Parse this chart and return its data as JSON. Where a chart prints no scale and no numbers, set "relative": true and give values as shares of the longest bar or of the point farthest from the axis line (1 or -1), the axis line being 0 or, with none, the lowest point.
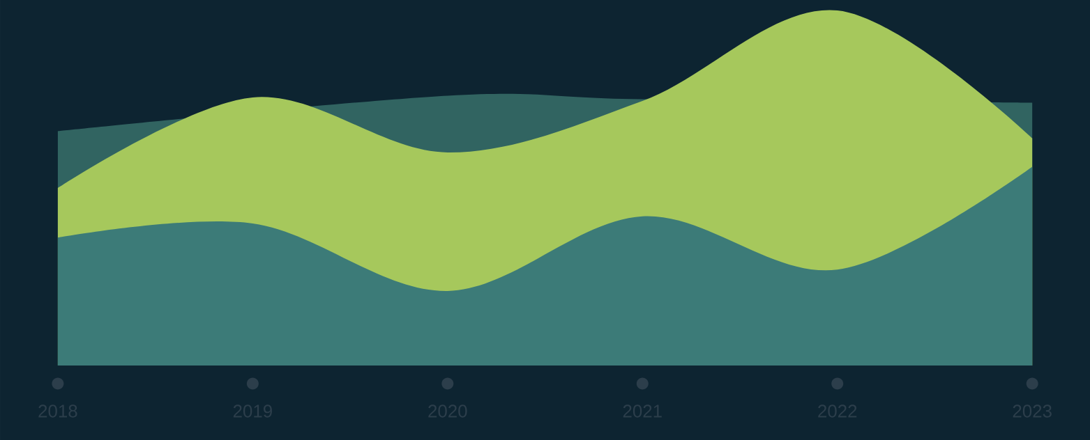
{
  "chart_data": {
    "type": "area",
    "relative": true,
    "categories": [
      "2018",
      "2019",
      "2020",
      "2021",
      "2022",
      "2023"
    ],
    "series": [
      {
        "color": "#316461",
        "values": [
          0.66,
          null,
          0.76,
          0.75,
          null,
          0.74
        ]
      },
      {
        "color": "#a6c85c",
        "values": [
          0.5,
          0.755,
          0.6,
          0.745,
          1.0,
          0.64
        ]
      },
      {
        "color": "#3c7b78",
        "values": [
          0.36,
          0.4,
          0.21,
          0.42,
          0.27,
          0.56
        ]
      }
    ]
  }
}
